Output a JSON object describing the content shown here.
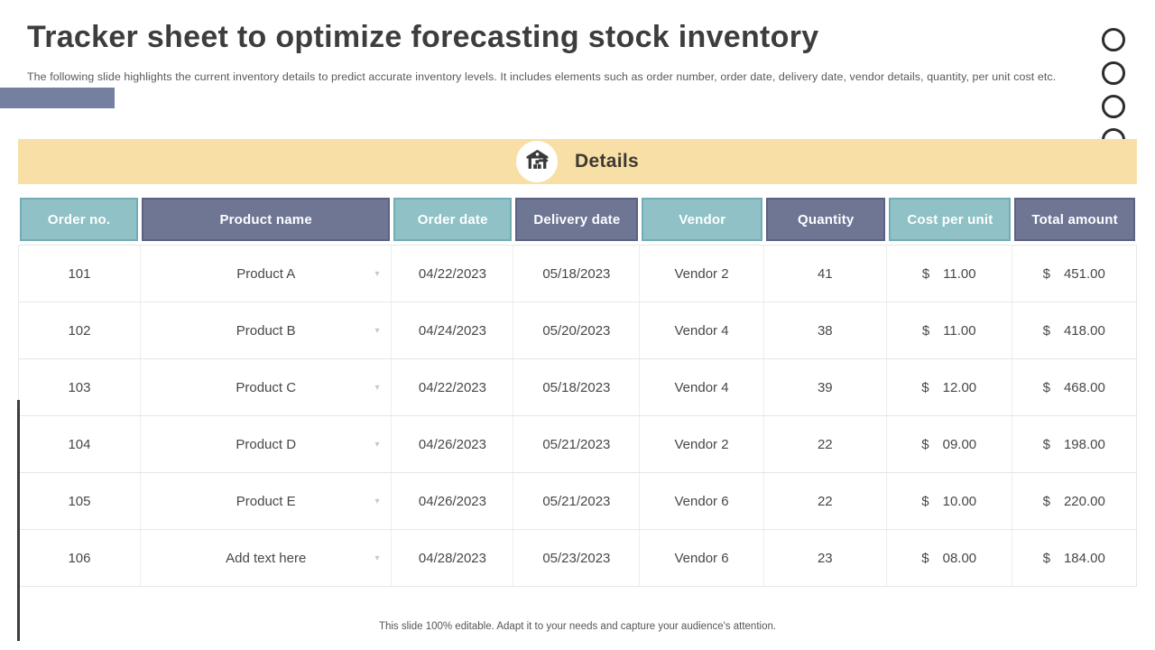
{
  "slide": {
    "title": "Tracker sheet to optimize forecasting stock inventory",
    "subtitle": "The following slide highlights the current inventory details to predict accurate inventory levels. It includes elements such as order number, order date, delivery date, vendor details, quantity, per unit cost etc.",
    "footer_note": "This slide 100% editable. Adapt it to your needs and capture your audience's attention."
  },
  "banner": {
    "label": "Details",
    "icon": "warehouse-icon"
  },
  "table": {
    "currency_symbol": "$",
    "columns": [
      {
        "label": "Order no.",
        "style": "teal"
      },
      {
        "label": "Product name",
        "style": "purple"
      },
      {
        "label": "Order date",
        "style": "teal"
      },
      {
        "label": "Delivery date",
        "style": "purple"
      },
      {
        "label": "Vendor",
        "style": "teal"
      },
      {
        "label": "Quantity",
        "style": "purple"
      },
      {
        "label": "Cost per unit",
        "style": "teal"
      },
      {
        "label": "Total amount",
        "style": "purple"
      }
    ],
    "rows": [
      {
        "order_no": "101",
        "product": "Product A",
        "order_date": "04/22/2023",
        "delivery_date": "05/18/2023",
        "vendor": "Vendor 2",
        "quantity": "41",
        "cost_per_unit": "11.00",
        "total_amount": "451.00"
      },
      {
        "order_no": "102",
        "product": "Product B",
        "order_date": "04/24/2023",
        "delivery_date": "05/20/2023",
        "vendor": "Vendor 4",
        "quantity": "38",
        "cost_per_unit": "11.00",
        "total_amount": "418.00"
      },
      {
        "order_no": "103",
        "product": "Product C",
        "order_date": "04/22/2023",
        "delivery_date": "05/18/2023",
        "vendor": "Vendor 4",
        "quantity": "39",
        "cost_per_unit": "12.00",
        "total_amount": "468.00"
      },
      {
        "order_no": "104",
        "product": "Product D",
        "order_date": "04/26/2023",
        "delivery_date": "05/21/2023",
        "vendor": "Vendor 2",
        "quantity": "22",
        "cost_per_unit": "09.00",
        "total_amount": "198.00"
      },
      {
        "order_no": "105",
        "product": "Product E",
        "order_date": "04/26/2023",
        "delivery_date": "05/21/2023",
        "vendor": "Vendor 6",
        "quantity": "22",
        "cost_per_unit": "10.00",
        "total_amount": "220.00"
      },
      {
        "order_no": "106",
        "product": "Add text here",
        "order_date": "04/28/2023",
        "delivery_date": "05/23/2023",
        "vendor": "Vendor 6",
        "quantity": "23",
        "cost_per_unit": "08.00",
        "total_amount": "184.00"
      }
    ]
  },
  "colors": {
    "teal_header": "#8fc1c6",
    "teal_border": "#72acb4",
    "purple_header": "#6e7694",
    "purple_border": "#5c6382",
    "banner_bg": "#f7dfa6",
    "accent_slate": "#7580a0"
  }
}
